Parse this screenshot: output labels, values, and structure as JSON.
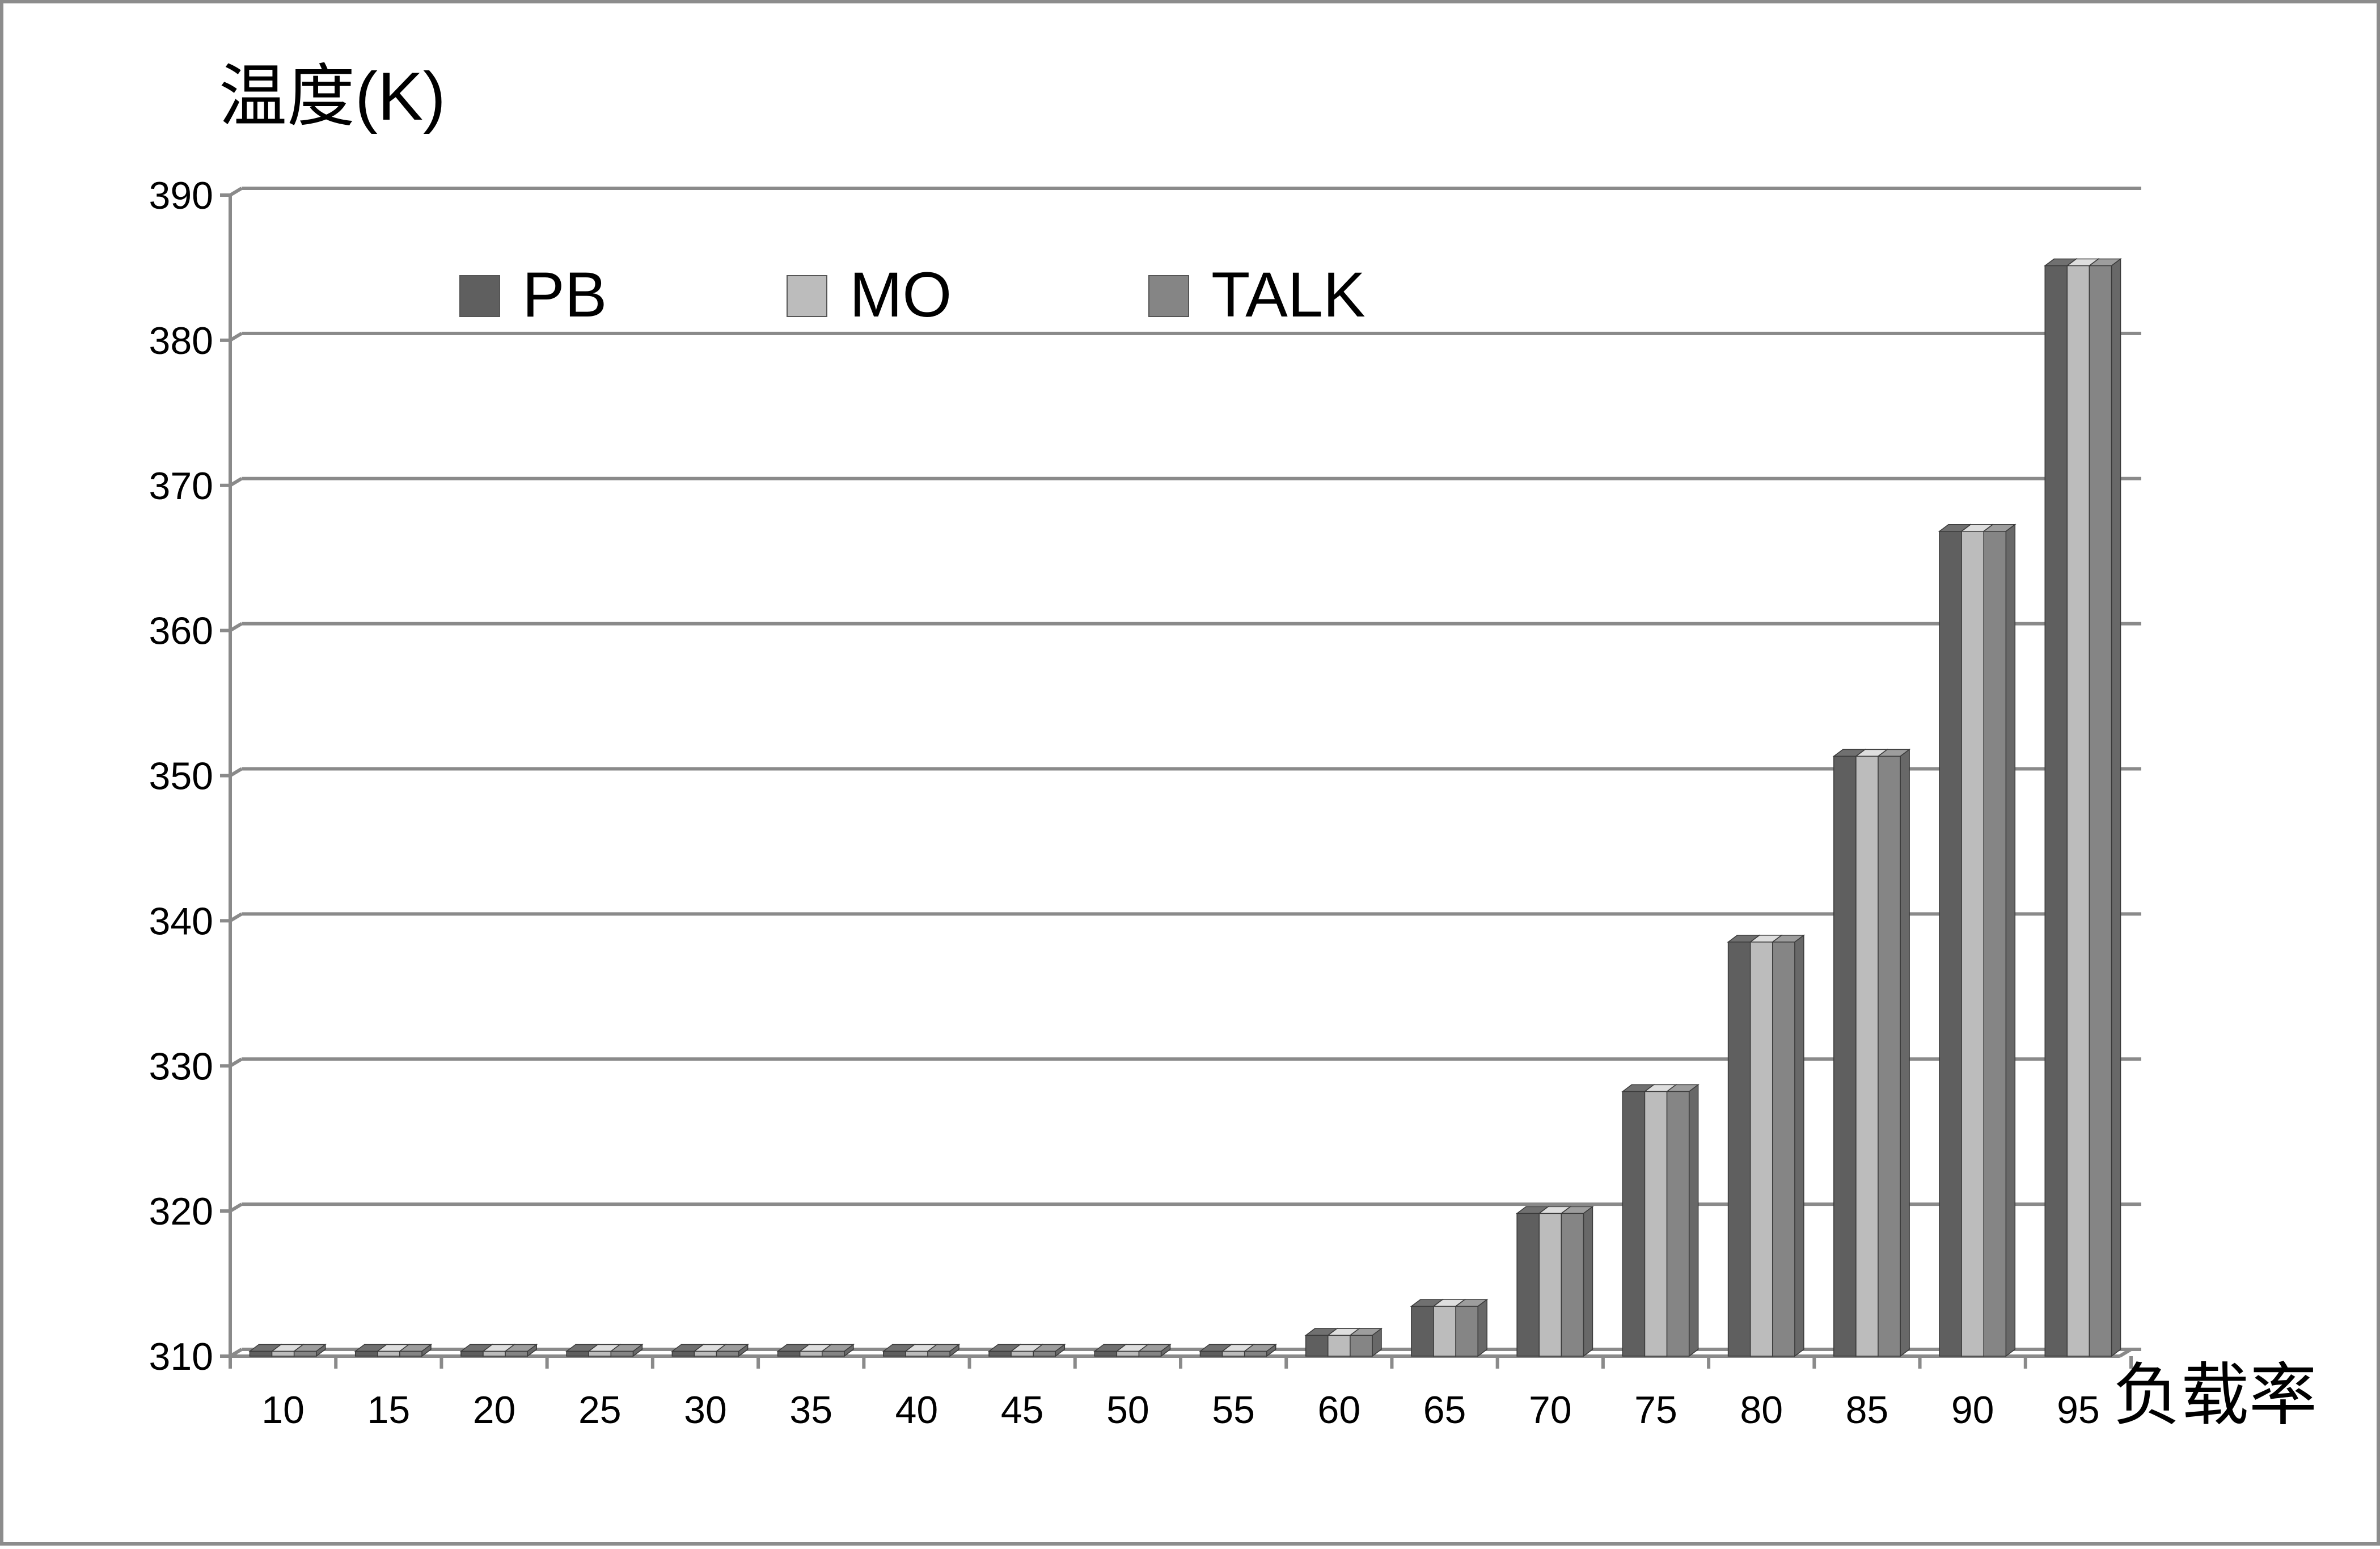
{
  "chart_data": {
    "type": "bar",
    "title": "",
    "ylabel": "温度(K)",
    "xlabel": "负载率",
    "categories": [
      "10",
      "15",
      "20",
      "25",
      "30",
      "35",
      "40",
      "45",
      "50",
      "55",
      "60",
      "65",
      "70",
      "75",
      "80",
      "85",
      "90",
      "95"
    ],
    "yticks": [
      "310",
      "320",
      "330",
      "340",
      "350",
      "360",
      "370",
      "380",
      "390"
    ],
    "ylim": [
      310,
      390
    ],
    "grid": true,
    "legend_position": "top-left",
    "series": [
      {
        "name": "PB",
        "color": "#5f5f5f",
        "values": [
          310.1,
          310.1,
          310.1,
          310.1,
          310.1,
          310.1,
          310.1,
          310.1,
          310.1,
          310.1,
          311.2,
          313.2,
          319.6,
          328.0,
          338.3,
          351.1,
          366.6,
          384.9
        ]
      },
      {
        "name": "MO",
        "color": "#bcbcbc",
        "values": [
          310.1,
          310.1,
          310.1,
          310.1,
          310.1,
          310.1,
          310.1,
          310.1,
          310.1,
          310.1,
          311.2,
          313.2,
          319.6,
          328.0,
          338.3,
          351.1,
          366.6,
          384.9
        ]
      },
      {
        "name": "TALK",
        "color": "#858585",
        "values": [
          310.1,
          310.1,
          310.1,
          310.1,
          310.1,
          310.1,
          310.1,
          310.1,
          310.1,
          310.1,
          311.2,
          313.2,
          319.6,
          328.0,
          338.3,
          351.1,
          366.6,
          384.9
        ]
      }
    ]
  }
}
